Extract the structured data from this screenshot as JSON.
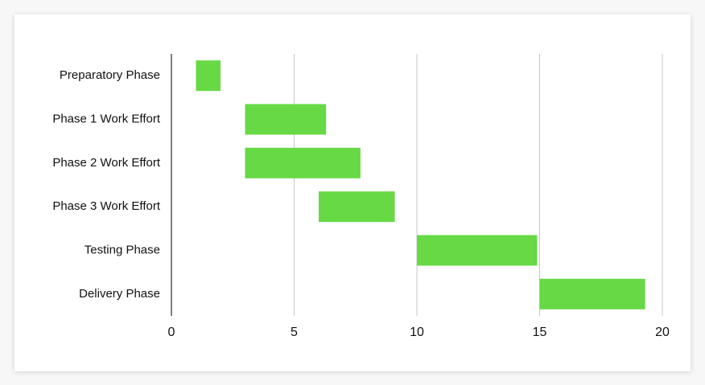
{
  "chart_data": {
    "type": "gantt",
    "categories": [
      "Preparatory Phase",
      "Phase 1 Work Effort",
      "Phase 2 Work Effort",
      "Phase 3 Work Effort",
      "Testing Phase",
      "Delivery Phase"
    ],
    "start": [
      1,
      3,
      3,
      6,
      10,
      15
    ],
    "duration": [
      1,
      3.3,
      4.7,
      3.1,
      4.9,
      4.3
    ],
    "color": "#66d945",
    "xlim": [
      0,
      20
    ],
    "xticks": [
      0,
      5,
      10,
      15,
      20
    ],
    "grid": true
  }
}
